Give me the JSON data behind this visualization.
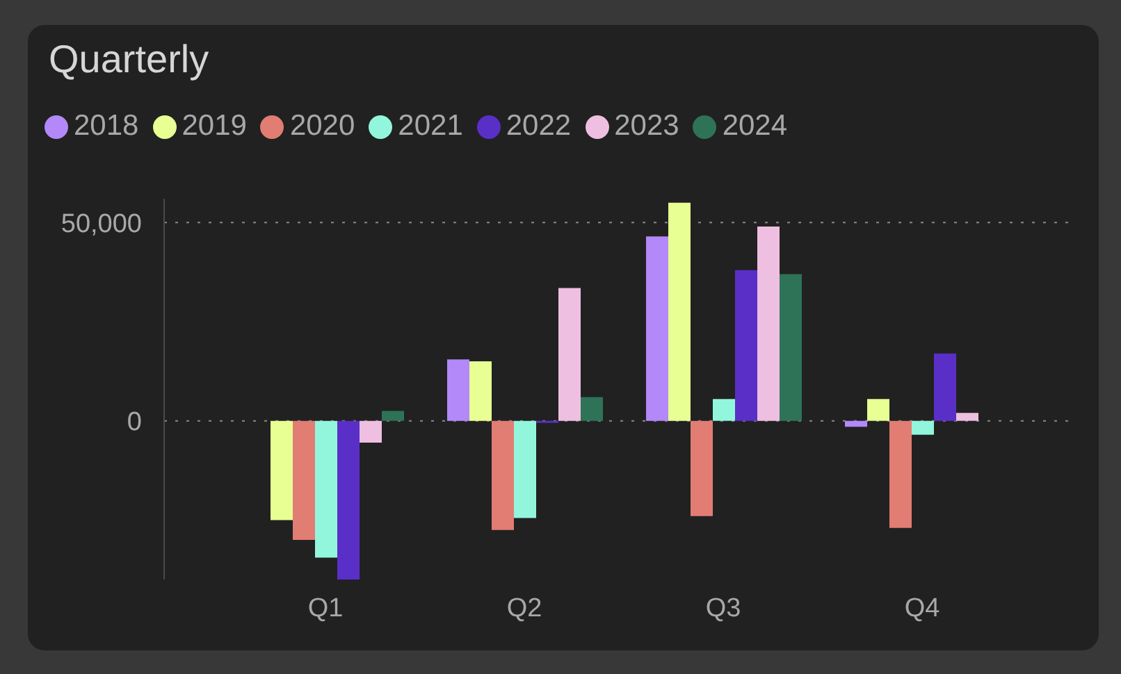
{
  "chart_data": {
    "type": "bar",
    "title": "Quarterly",
    "categories": [
      "Q1",
      "Q2",
      "Q3",
      "Q4"
    ],
    "series": [
      {
        "name": "2018",
        "color": "#b388f8",
        "values": [
          null,
          15500,
          46500,
          -1500
        ]
      },
      {
        "name": "2019",
        "color": "#e8ff94",
        "values": [
          -25000,
          15000,
          55000,
          5500
        ]
      },
      {
        "name": "2020",
        "color": "#e27d74",
        "values": [
          -30000,
          -27500,
          -24000,
          -27000
        ]
      },
      {
        "name": "2021",
        "color": "#92f6dc",
        "values": [
          -34500,
          -24500,
          5500,
          -3500
        ]
      },
      {
        "name": "2022",
        "color": "#5a2fc8",
        "values": [
          -40000,
          -500,
          38000,
          17000
        ]
      },
      {
        "name": "2023",
        "color": "#eebfe0",
        "values": [
          -5500,
          33500,
          49000,
          2000
        ]
      },
      {
        "name": "2024",
        "color": "#2e7358",
        "values": [
          2500,
          6000,
          37000,
          null
        ]
      }
    ],
    "ylim": [
      -40000,
      56000
    ],
    "yticks": [
      0,
      {
        "value": 50000,
        "label": "50,000"
      }
    ],
    "grid": "y",
    "legend": "top left"
  }
}
